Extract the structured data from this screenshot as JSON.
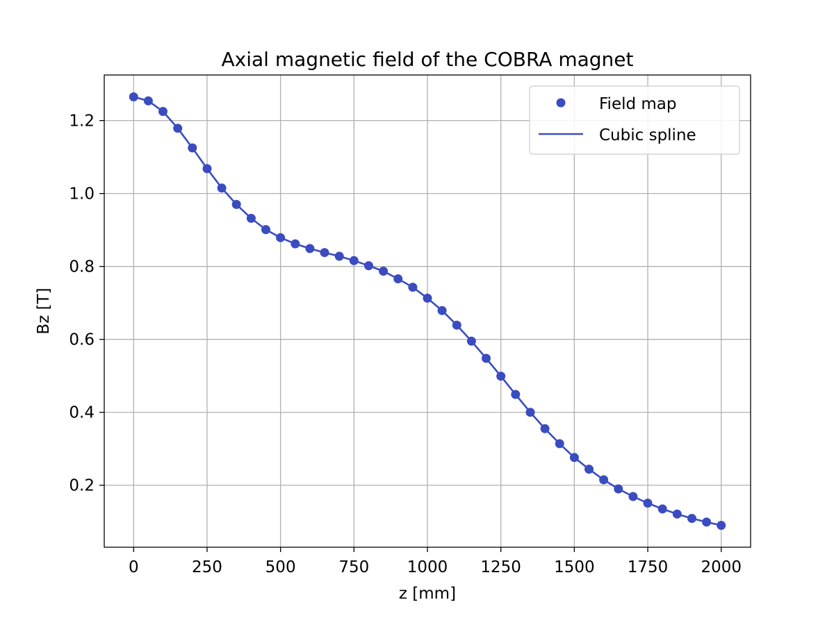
{
  "chart_data": {
    "type": "line",
    "title": "Axial magnetic field of the COBRA magnet",
    "xlabel": "z [mm]",
    "ylabel": "Bz [T]",
    "xlim": [
      -100,
      2100
    ],
    "ylim": [
      0.03,
      1.325
    ],
    "xticks": [
      0,
      250,
      500,
      750,
      1000,
      1250,
      1500,
      1750,
      2000
    ],
    "xtick_labels": [
      "0",
      "250",
      "500",
      "750",
      "1000",
      "1250",
      "1500",
      "1750",
      "2000"
    ],
    "yticks": [
      0.2,
      0.4,
      0.6,
      0.8,
      1.0,
      1.2
    ],
    "ytick_labels": [
      "0.2",
      "0.4",
      "0.6",
      "0.8",
      "1.0",
      "1.2"
    ],
    "grid": true,
    "legend_position": "top-right",
    "colors": {
      "series": "#3a4cc0",
      "grid": "#b0b0b0",
      "axes": "#000000"
    },
    "series": [
      {
        "name": "Field map",
        "style": "markers",
        "x": [
          0,
          50,
          100,
          150,
          200,
          250,
          300,
          350,
          400,
          450,
          500,
          550,
          600,
          650,
          700,
          750,
          800,
          850,
          900,
          950,
          1000,
          1050,
          1100,
          1150,
          1200,
          1250,
          1300,
          1350,
          1400,
          1450,
          1500,
          1550,
          1600,
          1650,
          1700,
          1750,
          1800,
          1850,
          1900,
          1950,
          2000
        ],
        "y": [
          1.265,
          1.254,
          1.225,
          1.179,
          1.125,
          1.068,
          1.015,
          0.97,
          0.932,
          0.901,
          0.879,
          0.862,
          0.849,
          0.838,
          0.828,
          0.816,
          0.802,
          0.787,
          0.766,
          0.743,
          0.713,
          0.679,
          0.639,
          0.595,
          0.548,
          0.499,
          0.449,
          0.4,
          0.355,
          0.314,
          0.276,
          0.244,
          0.215,
          0.19,
          0.169,
          0.151,
          0.135,
          0.121,
          0.109,
          0.099,
          0.09
        ]
      },
      {
        "name": "Cubic spline",
        "style": "line",
        "x": [
          0,
          50,
          100,
          150,
          200,
          250,
          300,
          350,
          400,
          450,
          500,
          550,
          600,
          650,
          700,
          750,
          800,
          850,
          900,
          950,
          1000,
          1050,
          1100,
          1150,
          1200,
          1250,
          1300,
          1350,
          1400,
          1450,
          1500,
          1550,
          1600,
          1650,
          1700,
          1750,
          1800,
          1850,
          1900,
          1950,
          2000
        ],
        "y": [
          1.265,
          1.254,
          1.225,
          1.179,
          1.125,
          1.068,
          1.015,
          0.97,
          0.932,
          0.901,
          0.879,
          0.862,
          0.849,
          0.838,
          0.828,
          0.816,
          0.802,
          0.787,
          0.766,
          0.743,
          0.713,
          0.679,
          0.639,
          0.595,
          0.548,
          0.499,
          0.449,
          0.4,
          0.355,
          0.314,
          0.276,
          0.244,
          0.215,
          0.19,
          0.169,
          0.151,
          0.135,
          0.121,
          0.109,
          0.099,
          0.09
        ]
      }
    ]
  }
}
